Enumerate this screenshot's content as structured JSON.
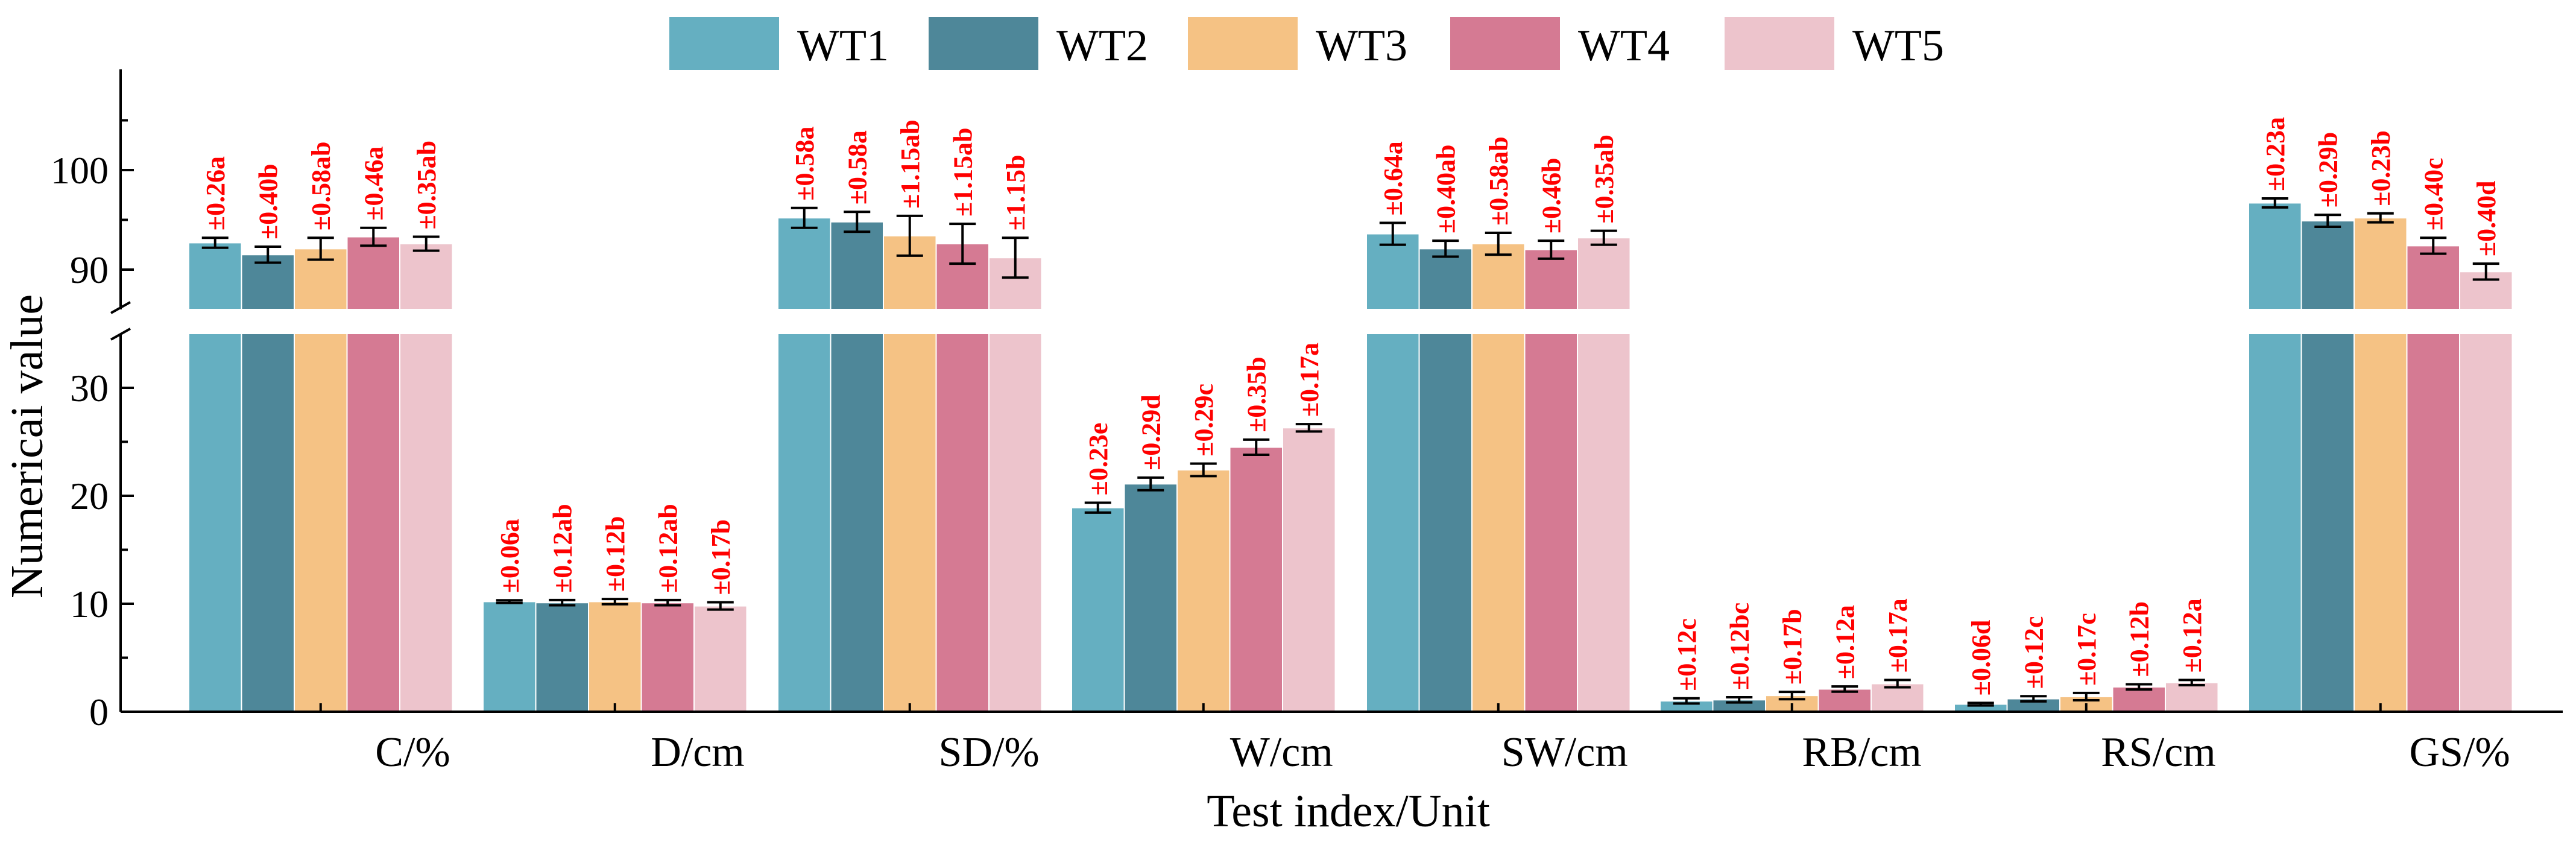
{
  "chart_data": {
    "type": "bar",
    "xlabel": "Test index/Unit",
    "ylabel": "Numericai value",
    "categories": [
      "C/%",
      "D/cm",
      "SD/%",
      "W/cm",
      "SW/cm",
      "RB/cm",
      "RS/cm",
      "GS/%"
    ],
    "axis_break": {
      "lower_range": [
        0,
        35
      ],
      "upper_range": [
        86,
        110
      ]
    },
    "y_ticks_lower": [
      "0",
      "10",
      "20",
      "30"
    ],
    "y_ticks_upper": [
      "90",
      "100"
    ],
    "legend_position": "top-center",
    "series": [
      {
        "name": "WT1",
        "color": "#65afc1",
        "values": [
          92.7,
          10.2,
          95.2,
          18.9,
          93.6,
          1.0,
          0.7,
          96.7
        ],
        "errors": [
          0.5,
          0.12,
          1.0,
          0.46,
          1.1,
          0.24,
          0.12,
          0.45
        ],
        "labels": [
          "±0.26a",
          "±0.06a",
          "±0.58a",
          "±0.23e",
          "±0.64a",
          "±0.12c",
          "±0.06d",
          "±0.23a"
        ]
      },
      {
        "name": "WT2",
        "color": "#4e8799",
        "values": [
          91.5,
          10.1,
          94.8,
          21.1,
          92.1,
          1.1,
          1.2,
          94.9
        ],
        "errors": [
          0.8,
          0.24,
          1.0,
          0.58,
          0.8,
          0.24,
          0.24,
          0.6
        ],
        "labels": [
          "±0.40b",
          "±0.12ab",
          "±0.58a",
          "±0.29d",
          "±0.40ab",
          "±0.12bc",
          "±0.12c",
          "±0.29b"
        ]
      },
      {
        "name": "WT3",
        "color": "#f5c284",
        "values": [
          92.1,
          10.2,
          93.4,
          22.4,
          92.6,
          1.5,
          1.4,
          95.2
        ],
        "errors": [
          1.1,
          0.24,
          2.0,
          0.58,
          1.1,
          0.34,
          0.34,
          0.45
        ],
        "labels": [
          "±0.58ab",
          "±0.12b",
          "±1.15ab",
          "±0.29c",
          "±0.58ab",
          "±0.17b",
          "±0.17c",
          "±0.23b"
        ]
      },
      {
        "name": "WT4",
        "color": "#d57a93",
        "values": [
          93.3,
          10.1,
          92.6,
          24.5,
          92.0,
          2.1,
          2.3,
          92.4
        ],
        "errors": [
          0.9,
          0.24,
          2.0,
          0.7,
          0.9,
          0.24,
          0.24,
          0.8
        ],
        "labels": [
          "±0.46a",
          "±0.12ab",
          "±1.15ab",
          "±0.35b",
          "±0.46b",
          "±0.12a",
          "±0.12b",
          "±0.40c"
        ]
      },
      {
        "name": "WT5",
        "color": "#edc4cc",
        "values": [
          92.6,
          9.8,
          91.2,
          26.3,
          93.2,
          2.6,
          2.7,
          89.8
        ],
        "errors": [
          0.7,
          0.34,
          2.0,
          0.34,
          0.7,
          0.34,
          0.24,
          0.8
        ],
        "labels": [
          "±0.35ab",
          "±0.17b",
          "±1.15b",
          "±0.17a",
          "±0.35ab",
          "±0.17a",
          "±0.12a",
          "±0.40d"
        ]
      }
    ],
    "annotation_color": "#ff0000"
  }
}
